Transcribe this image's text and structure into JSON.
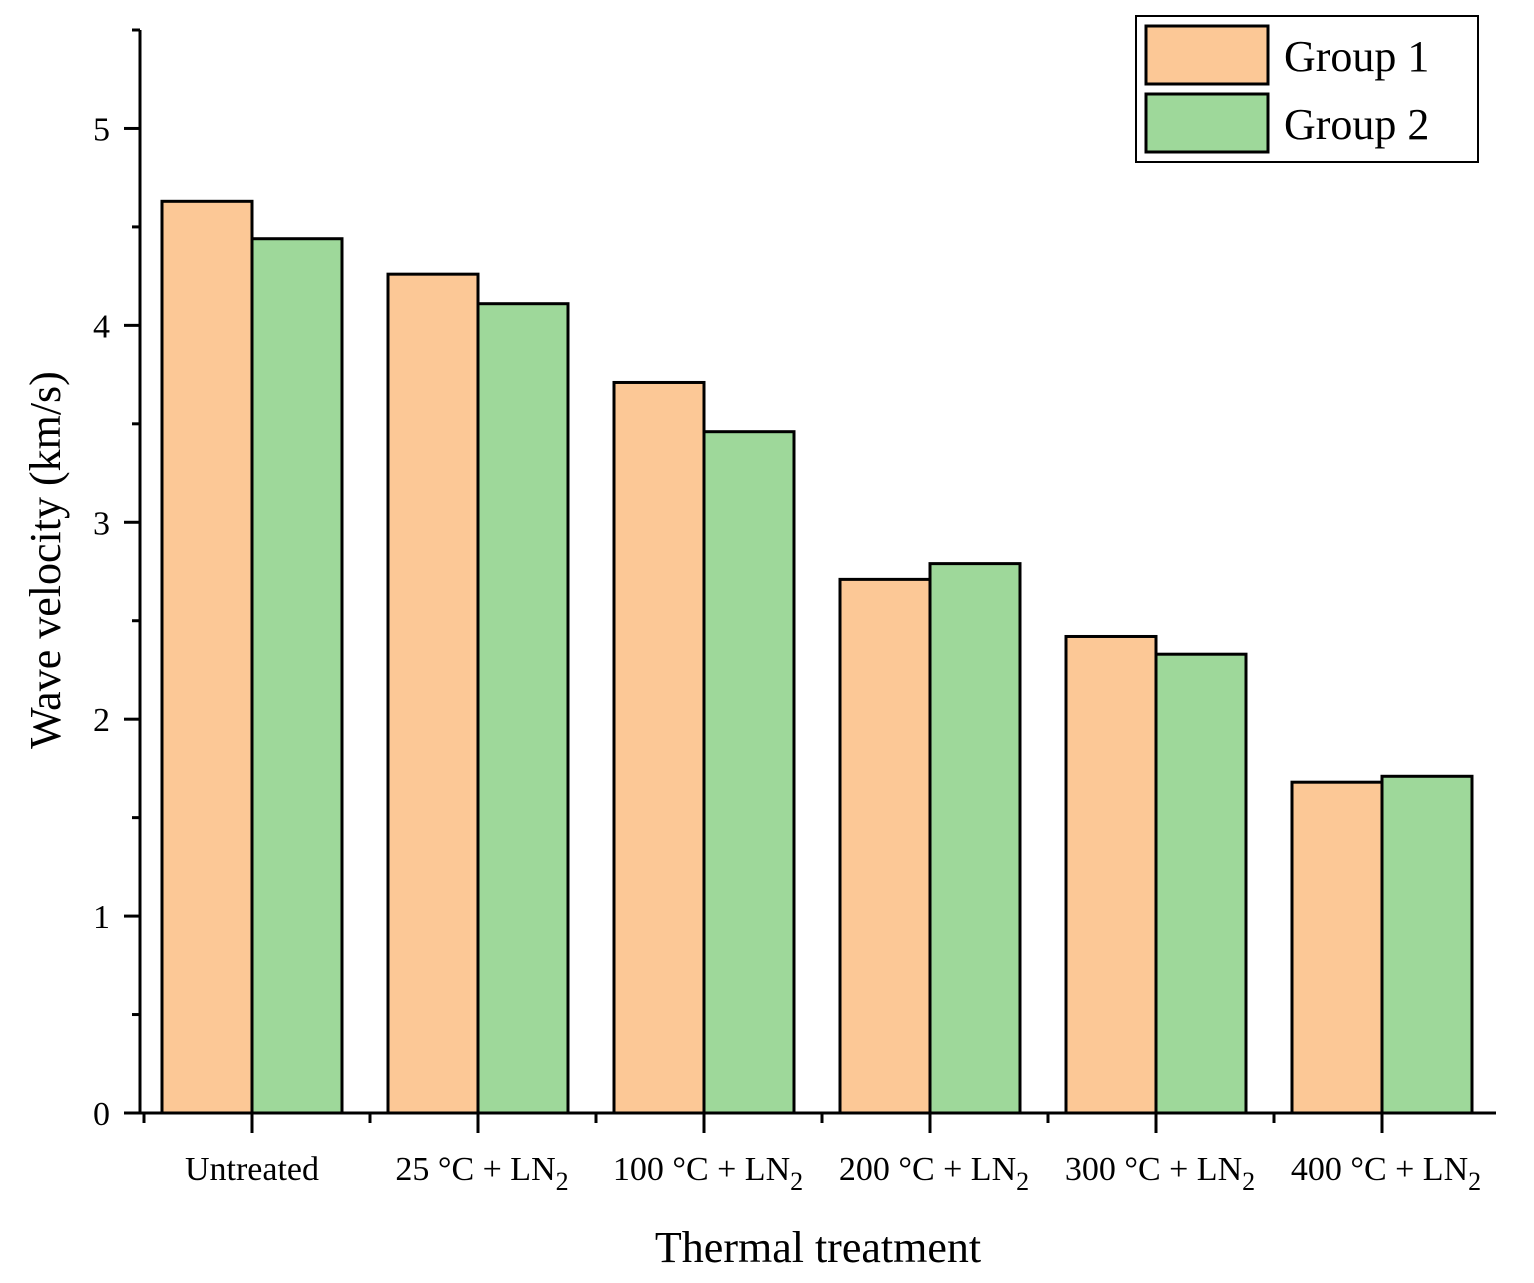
{
  "chart_data": {
    "type": "bar",
    "title": "",
    "xlabel": "Thermal treatment",
    "ylabel": "Wave velocity (km/s)",
    "ylim": [
      0,
      5.5
    ],
    "yticks": [
      0,
      1,
      2,
      3,
      4,
      5
    ],
    "categories": [
      {
        "main": "Untreated",
        "sub": ""
      },
      {
        "main": "25 °C + LN",
        "sub": "2"
      },
      {
        "main": "100 °C + LN",
        "sub": "2"
      },
      {
        "main": "200 °C + LN",
        "sub": "2"
      },
      {
        "main": "300 °C + LN",
        "sub": "2"
      },
      {
        "main": "400 °C + LN",
        "sub": "2"
      }
    ],
    "series": [
      {
        "name": "Group 1",
        "color": "#fcc896",
        "values": [
          4.63,
          4.26,
          3.71,
          2.71,
          2.42,
          1.68
        ]
      },
      {
        "name": "Group 2",
        "color": "#9ed89a",
        "values": [
          4.44,
          4.11,
          3.46,
          2.79,
          2.33,
          1.71
        ]
      }
    ],
    "legend_position": "top-right",
    "grid": false
  }
}
